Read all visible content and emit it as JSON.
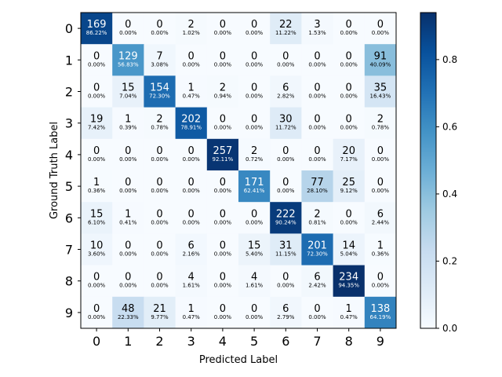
{
  "chart_data": {
    "type": "heatmap",
    "title": "",
    "xlabel": "Predicted Label",
    "ylabel": "Ground Truth Label",
    "x_categories": [
      "0",
      "1",
      "2",
      "3",
      "4",
      "5",
      "6",
      "7",
      "8",
      "9"
    ],
    "y_categories": [
      "0",
      "1",
      "2",
      "3",
      "4",
      "5",
      "6",
      "7",
      "8",
      "9"
    ],
    "counts": [
      [
        169,
        0,
        0,
        2,
        0,
        0,
        22,
        3,
        0,
        0
      ],
      [
        0,
        129,
        7,
        0,
        0,
        0,
        0,
        0,
        0,
        91
      ],
      [
        0,
        15,
        154,
        1,
        2,
        0,
        6,
        0,
        0,
        35
      ],
      [
        19,
        1,
        2,
        202,
        0,
        0,
        30,
        0,
        0,
        2
      ],
      [
        0,
        0,
        0,
        0,
        257,
        2,
        0,
        0,
        20,
        0
      ],
      [
        1,
        0,
        0,
        0,
        0,
        171,
        0,
        77,
        25,
        0
      ],
      [
        15,
        1,
        0,
        0,
        0,
        0,
        222,
        2,
        0,
        6
      ],
      [
        10,
        0,
        0,
        6,
        0,
        15,
        31,
        201,
        14,
        1
      ],
      [
        0,
        0,
        0,
        4,
        0,
        4,
        0,
        6,
        234,
        0
      ],
      [
        0,
        48,
        21,
        1,
        0,
        0,
        6,
        0,
        1,
        138
      ]
    ],
    "percent_labels": [
      [
        "86.22%",
        "0.00%",
        "0.00%",
        "1.02%",
        "0.00%",
        "0.00%",
        "11.22%",
        "1.53%",
        "0.00%",
        "0.00%"
      ],
      [
        "0.00%",
        "56.83%",
        "3.08%",
        "0.00%",
        "0.00%",
        "0.00%",
        "0.00%",
        "0.00%",
        "0.00%",
        "40.09%"
      ],
      [
        "0.00%",
        "7.04%",
        "72.30%",
        "0.47%",
        "0.94%",
        "0.00%",
        "2.82%",
        "0.00%",
        "0.00%",
        "16.43%"
      ],
      [
        "7.42%",
        "0.39%",
        "0.78%",
        "78.91%",
        "0.00%",
        "0.00%",
        "11.72%",
        "0.00%",
        "0.00%",
        "0.78%"
      ],
      [
        "0.00%",
        "0.00%",
        "0.00%",
        "0.00%",
        "92.11%",
        "0.72%",
        "0.00%",
        "0.00%",
        "7.17%",
        "0.00%"
      ],
      [
        "0.36%",
        "0.00%",
        "0.00%",
        "0.00%",
        "0.00%",
        "62.41%",
        "0.00%",
        "28.10%",
        "9.12%",
        "0.00%"
      ],
      [
        "6.10%",
        "0.41%",
        "0.00%",
        "0.00%",
        "0.00%",
        "0.00%",
        "90.24%",
        "0.81%",
        "0.00%",
        "2.44%"
      ],
      [
        "3.60%",
        "0.00%",
        "0.00%",
        "2.16%",
        "0.00%",
        "5.40%",
        "11.15%",
        "72.30%",
        "5.04%",
        "0.36%"
      ],
      [
        "0.00%",
        "0.00%",
        "0.00%",
        "1.61%",
        "0.00%",
        "1.61%",
        "0.00%",
        "2.42%",
        "94.35%",
        "0.00%"
      ],
      [
        "0.00%",
        "22.33%",
        "9.77%",
        "0.47%",
        "0.00%",
        "0.00%",
        "2.79%",
        "0.00%",
        "0.47%",
        "64.19%"
      ]
    ],
    "colorbar": {
      "colormap": "Blues",
      "range": [
        0,
        0.94
      ],
      "ticks": [
        0.0,
        0.2,
        0.4,
        0.6,
        0.8
      ],
      "tick_labels": [
        "0.0",
        "0.2",
        "0.4",
        "0.6",
        "0.8"
      ]
    },
    "grid": false,
    "legend": "none"
  }
}
